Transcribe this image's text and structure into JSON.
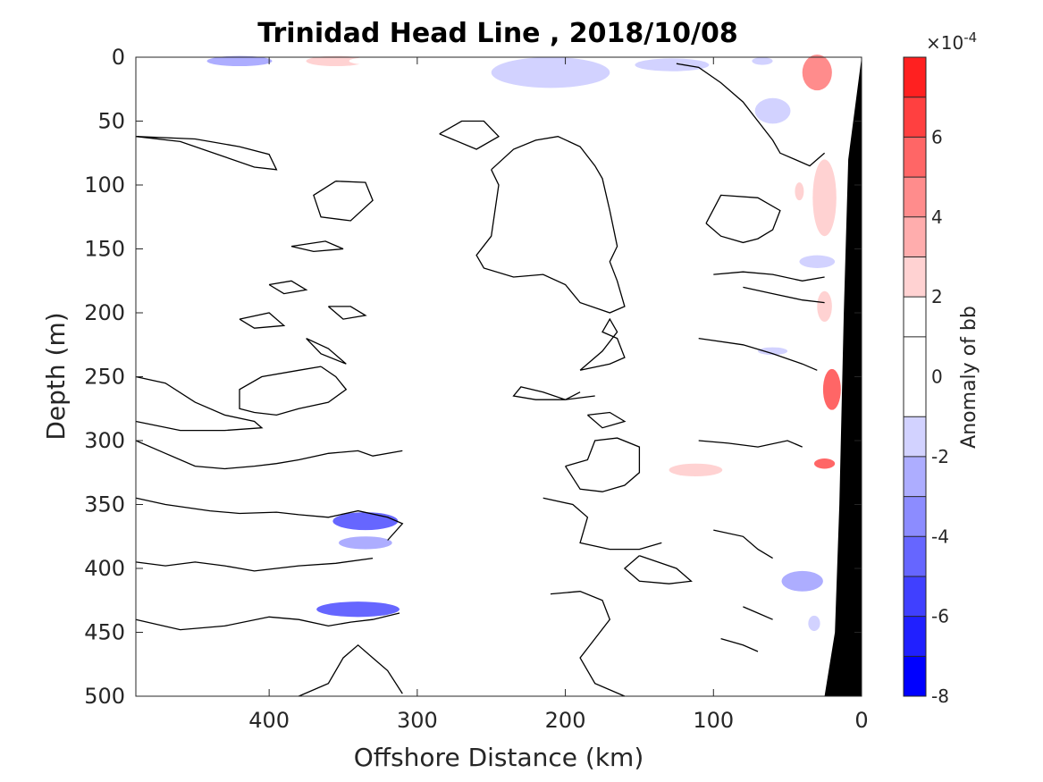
{
  "chart_data": {
    "type": "heatmap",
    "title": "Trinidad Head Line , 2018/10/08",
    "xlabel": "Offshore Distance (km)",
    "ylabel": "Depth (m)",
    "xlim": [
      490,
      0
    ],
    "ylim": [
      0,
      500
    ],
    "x_ticks": [
      "400",
      "300",
      "200",
      "100",
      "0"
    ],
    "x_tick_values": [
      400,
      300,
      200,
      100,
      0
    ],
    "y_ticks": [
      "0",
      "50",
      "100",
      "150",
      "200",
      "250",
      "300",
      "350",
      "400",
      "450",
      "500"
    ],
    "y_tick_values": [
      0,
      50,
      100,
      150,
      200,
      250,
      300,
      350,
      400,
      450,
      500
    ],
    "colorbar": {
      "label": "Anomaly of bb",
      "exponent_label": "×10",
      "exponent_power": "-4",
      "range": [
        -8,
        8
      ],
      "ticks": [
        "6",
        "4",
        "2",
        "0",
        "-2",
        "-4",
        "-6",
        "-8"
      ],
      "tick_values": [
        6,
        4,
        2,
        0,
        -2,
        -4,
        -6,
        -8
      ],
      "levels": [
        -8,
        -7,
        -6,
        -5,
        -4,
        -3,
        -2,
        -1,
        1,
        2,
        3,
        4,
        5,
        6,
        7,
        8
      ],
      "colors": [
        "#0000ff",
        "#2020ff",
        "#4040ff",
        "#6666ff",
        "#8c8cff",
        "#adadff",
        "#d2d2ff",
        "#ffffff",
        "#ffffff",
        "#ffd2d2",
        "#ffadad",
        "#ff8c8c",
        "#ff6666",
        "#ff4040",
        "#ff2020",
        "#ff0000"
      ]
    },
    "bathymetry_color": "#000000",
    "bathymetry": [
      [
        0,
        0
      ],
      [
        9,
        80
      ],
      [
        12,
        200
      ],
      [
        15,
        350
      ],
      [
        18,
        450
      ],
      [
        25,
        500
      ]
    ],
    "anomaly_patches": [
      {
        "x": 420,
        "y": 3,
        "value": -2.5,
        "w": 22,
        "h": 4
      },
      {
        "x": 355,
        "y": 3,
        "value": 2.5,
        "w": 20,
        "h": 4
      },
      {
        "x": 330,
        "y": 3,
        "value": 1.5,
        "w": 16,
        "h": 3
      },
      {
        "x": 270,
        "y": 2,
        "value": 1.5,
        "w": 5,
        "h": 2
      },
      {
        "x": 210,
        "y": 12,
        "value": -1.5,
        "w": 40,
        "h": 12
      },
      {
        "x": 128,
        "y": 6,
        "value": -1.5,
        "w": 25,
        "h": 5
      },
      {
        "x": 67,
        "y": 3,
        "value": -1.5,
        "w": 7,
        "h": 3
      },
      {
        "x": 30,
        "y": 12,
        "value": 4.5,
        "w": 10,
        "h": 14
      },
      {
        "x": 320,
        "y": 50,
        "value": 1.5,
        "w": 25,
        "h": 16
      },
      {
        "x": 430,
        "y": 40,
        "value": 1.5,
        "w": 6,
        "h": 2
      },
      {
        "x": 60,
        "y": 42,
        "value": -1.5,
        "w": 12,
        "h": 10
      },
      {
        "x": 100,
        "y": 115,
        "value": 1.5,
        "w": 20,
        "h": 50
      },
      {
        "x": 45,
        "y": 115,
        "value": 1.5,
        "w": 14,
        "h": 32
      },
      {
        "x": 42,
        "y": 105,
        "value": 2.5,
        "w": 3,
        "h": 7
      },
      {
        "x": 25,
        "y": 110,
        "value": 2.5,
        "w": 8,
        "h": 30
      },
      {
        "x": 30,
        "y": 160,
        "value": -1.5,
        "w": 12,
        "h": 5
      },
      {
        "x": 25,
        "y": 195,
        "value": 2.5,
        "w": 5,
        "h": 12
      },
      {
        "x": 330,
        "y": 210,
        "value": 1.5,
        "w": 18,
        "h": 4
      },
      {
        "x": 100,
        "y": 233,
        "value": 1.5,
        "w": 4,
        "h": 3
      },
      {
        "x": 60,
        "y": 230,
        "value": -1.5,
        "w": 10,
        "h": 3
      },
      {
        "x": 20,
        "y": 260,
        "value": 5.5,
        "w": 6,
        "h": 16
      },
      {
        "x": 112,
        "y": 323,
        "value": 2.5,
        "w": 18,
        "h": 5
      },
      {
        "x": 25,
        "y": 318,
        "value": 5.5,
        "w": 7,
        "h": 4
      },
      {
        "x": 335,
        "y": 363,
        "value": -4.5,
        "w": 22,
        "h": 7
      },
      {
        "x": 335,
        "y": 380,
        "value": -2.5,
        "w": 18,
        "h": 5
      },
      {
        "x": 130,
        "y": 378,
        "value": 1.5,
        "w": 12,
        "h": 3
      },
      {
        "x": 40,
        "y": 410,
        "value": -2.5,
        "w": 14,
        "h": 8
      },
      {
        "x": 340,
        "y": 432,
        "value": -4.5,
        "w": 28,
        "h": 6
      },
      {
        "x": 32,
        "y": 443,
        "value": -1.5,
        "w": 4,
        "h": 6
      }
    ],
    "zero_contours": [
      [
        [
          490,
          62
        ],
        [
          460,
          66
        ],
        [
          430,
          78
        ],
        [
          410,
          86
        ],
        [
          395,
          88
        ],
        [
          400,
          76
        ],
        [
          420,
          70
        ],
        [
          450,
          64
        ],
        [
          490,
          62
        ]
      ],
      [
        [
          355,
          97
        ],
        [
          370,
          108
        ],
        [
          365,
          125
        ],
        [
          345,
          128
        ],
        [
          330,
          112
        ],
        [
          335,
          98
        ],
        [
          355,
          97
        ]
      ],
      [
        [
          385,
          148
        ],
        [
          370,
          152
        ],
        [
          350,
          150
        ],
        [
          362,
          144
        ],
        [
          385,
          148
        ]
      ],
      [
        [
          250,
          88
        ],
        [
          245,
          100
        ],
        [
          250,
          140
        ],
        [
          260,
          155
        ],
        [
          255,
          165
        ],
        [
          235,
          172
        ],
        [
          215,
          170
        ],
        [
          200,
          178
        ],
        [
          190,
          192
        ],
        [
          170,
          200
        ],
        [
          160,
          195
        ],
        [
          165,
          175
        ],
        [
          170,
          160
        ],
        [
          165,
          148
        ],
        [
          170,
          120
        ],
        [
          175,
          95
        ],
        [
          180,
          85
        ],
        [
          190,
          70
        ],
        [
          205,
          62
        ],
        [
          220,
          65
        ],
        [
          235,
          72
        ],
        [
          250,
          88
        ]
      ],
      [
        [
          285,
          60
        ],
        [
          270,
          50
        ],
        [
          255,
          50
        ],
        [
          245,
          62
        ],
        [
          260,
          72
        ],
        [
          285,
          60
        ]
      ],
      [
        [
          400,
          178
        ],
        [
          390,
          185
        ],
        [
          375,
          182
        ],
        [
          385,
          175
        ],
        [
          400,
          178
        ]
      ],
      [
        [
          360,
          195
        ],
        [
          350,
          205
        ],
        [
          335,
          202
        ],
        [
          345,
          195
        ],
        [
          360,
          195
        ]
      ],
      [
        [
          420,
          205
        ],
        [
          400,
          200
        ],
        [
          390,
          210
        ],
        [
          410,
          212
        ],
        [
          420,
          205
        ]
      ],
      [
        [
          375,
          220
        ],
        [
          360,
          228
        ],
        [
          348,
          240
        ],
        [
          365,
          232
        ],
        [
          375,
          220
        ]
      ],
      [
        [
          490,
          250
        ],
        [
          470,
          255
        ],
        [
          450,
          270
        ],
        [
          430,
          280
        ],
        [
          410,
          285
        ],
        [
          405,
          290
        ],
        [
          430,
          292
        ],
        [
          460,
          292
        ],
        [
          490,
          285
        ]
      ],
      [
        [
          365,
          242
        ],
        [
          355,
          250
        ],
        [
          348,
          260
        ],
        [
          360,
          270
        ],
        [
          380,
          275
        ],
        [
          395,
          280
        ],
        [
          410,
          278
        ],
        [
          420,
          275
        ],
        [
          420,
          260
        ],
        [
          405,
          250
        ],
        [
          380,
          245
        ],
        [
          365,
          242
        ]
      ],
      [
        [
          490,
          300
        ],
        [
          470,
          310
        ],
        [
          450,
          320
        ],
        [
          430,
          322
        ],
        [
          410,
          320
        ],
        [
          395,
          318
        ],
        [
          380,
          315
        ],
        [
          360,
          310
        ],
        [
          340,
          308
        ],
        [
          330,
          312
        ],
        [
          310,
          308
        ]
      ],
      [
        [
          490,
          345
        ],
        [
          470,
          350
        ],
        [
          440,
          355
        ],
        [
          420,
          357
        ],
        [
          395,
          356
        ],
        [
          380,
          358
        ],
        [
          360,
          360
        ],
        [
          340,
          355
        ],
        [
          320,
          360
        ],
        [
          310,
          365
        ],
        [
          320,
          378
        ]
      ],
      [
        [
          490,
          395
        ],
        [
          470,
          398
        ],
        [
          450,
          395
        ],
        [
          430,
          398
        ],
        [
          410,
          402
        ],
        [
          380,
          398
        ],
        [
          355,
          396
        ],
        [
          330,
          392
        ]
      ],
      [
        [
          490,
          440
        ],
        [
          460,
          448
        ],
        [
          430,
          445
        ],
        [
          400,
          438
        ],
        [
          380,
          440
        ],
        [
          360,
          445
        ],
        [
          345,
          442
        ],
        [
          330,
          440
        ],
        [
          312,
          435
        ]
      ],
      [
        [
          380,
          500
        ],
        [
          360,
          490
        ],
        [
          350,
          470
        ],
        [
          340,
          460
        ],
        [
          330,
          470
        ],
        [
          320,
          480
        ],
        [
          310,
          498
        ]
      ],
      [
        [
          180,
          265
        ],
        [
          200,
          268
        ],
        [
          215,
          262
        ],
        [
          230,
          258
        ],
        [
          235,
          265
        ],
        [
          220,
          268
        ],
        [
          200,
          268
        ],
        [
          190,
          262
        ]
      ],
      [
        [
          190,
          245
        ],
        [
          170,
          240
        ],
        [
          160,
          235
        ],
        [
          165,
          220
        ],
        [
          175,
          215
        ],
        [
          170,
          205
        ],
        [
          165,
          215
        ],
        [
          175,
          230
        ],
        [
          190,
          245
        ]
      ],
      [
        [
          185,
          280
        ],
        [
          170,
          278
        ],
        [
          160,
          285
        ],
        [
          175,
          290
        ],
        [
          185,
          280
        ]
      ],
      [
        [
          200,
          320
        ],
        [
          185,
          315
        ],
        [
          180,
          300
        ],
        [
          165,
          298
        ],
        [
          150,
          305
        ],
        [
          150,
          325
        ],
        [
          160,
          335
        ],
        [
          175,
          340
        ],
        [
          190,
          338
        ],
        [
          200,
          320
        ]
      ],
      [
        [
          215,
          345
        ],
        [
          195,
          350
        ],
        [
          185,
          360
        ],
        [
          190,
          380
        ],
        [
          170,
          385
        ],
        [
          150,
          385
        ],
        [
          135,
          380
        ]
      ],
      [
        [
          150,
          390
        ],
        [
          160,
          400
        ],
        [
          150,
          410
        ],
        [
          130,
          412
        ],
        [
          115,
          410
        ],
        [
          125,
          400
        ],
        [
          150,
          390
        ]
      ],
      [
        [
          210,
          420
        ],
        [
          190,
          418
        ],
        [
          175,
          425
        ],
        [
          170,
          440
        ],
        [
          180,
          455
        ],
        [
          190,
          470
        ],
        [
          180,
          490
        ],
        [
          160,
          500
        ]
      ],
      [
        [
          105,
          130
        ],
        [
          95,
          140
        ],
        [
          80,
          145
        ],
        [
          70,
          142
        ],
        [
          60,
          135
        ],
        [
          55,
          120
        ],
        [
          70,
          110
        ],
        [
          95,
          108
        ],
        [
          105,
          130
        ]
      ],
      [
        [
          125,
          5
        ],
        [
          110,
          8
        ],
        [
          95,
          20
        ],
        [
          80,
          35
        ],
        [
          70,
          50
        ],
        [
          60,
          65
        ],
        [
          55,
          75
        ],
        [
          45,
          80
        ],
        [
          35,
          85
        ],
        [
          30,
          80
        ],
        [
          25,
          75
        ]
      ],
      [
        [
          100,
          170
        ],
        [
          80,
          168
        ],
        [
          60,
          170
        ],
        [
          40,
          175
        ],
        [
          25,
          172
        ]
      ],
      [
        [
          80,
          180
        ],
        [
          60,
          185
        ],
        [
          40,
          190
        ],
        [
          25,
          192
        ]
      ],
      [
        [
          110,
          220
        ],
        [
          80,
          225
        ],
        [
          60,
          232
        ],
        [
          40,
          240
        ],
        [
          30,
          245
        ]
      ],
      [
        [
          110,
          300
        ],
        [
          90,
          302
        ],
        [
          70,
          305
        ],
        [
          50,
          300
        ],
        [
          40,
          305
        ]
      ],
      [
        [
          100,
          370
        ],
        [
          80,
          375
        ],
        [
          70,
          385
        ],
        [
          60,
          392
        ]
      ],
      [
        [
          80,
          430
        ],
        [
          70,
          435
        ],
        [
          60,
          440
        ]
      ],
      [
        [
          95,
          455
        ],
        [
          80,
          460
        ],
        [
          70,
          465
        ]
      ]
    ]
  }
}
